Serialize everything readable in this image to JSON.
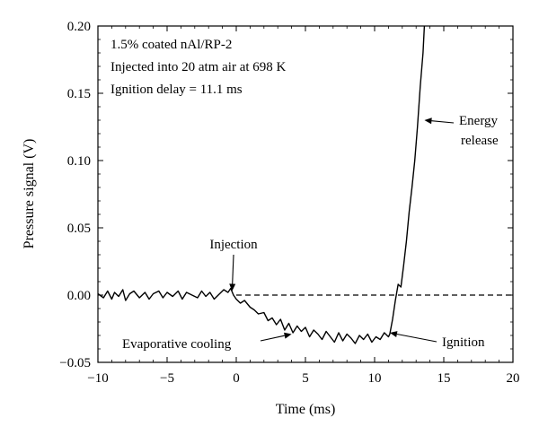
{
  "chart_data": {
    "type": "line",
    "xlabel": "Time (ms)",
    "ylabel": "Pressure signal (V)",
    "xlim": [
      -10,
      20
    ],
    "ylim": [
      -0.05,
      0.2
    ],
    "x_ticks": [
      -10,
      -5,
      0,
      5,
      10,
      15,
      20
    ],
    "y_ticks": [
      -0.05,
      0.0,
      0.05,
      0.1,
      0.15,
      0.2
    ],
    "x_tick_labels": [
      "−10",
      "−5",
      "0",
      "5",
      "10",
      "15",
      "20"
    ],
    "y_tick_labels": [
      "−0.05",
      "0.00",
      "0.05",
      "0.10",
      "0.15",
      "0.20"
    ],
    "info_text": [
      "1.5% coated nAl/RP-2",
      "Injected into 20 atm air at 698 K",
      "Ignition delay = 11.1 ms"
    ],
    "reference_line": {
      "y": 0.0,
      "style": "dashed",
      "x_start": 0
    },
    "annotations": [
      {
        "text": "Injection",
        "x": -0.3,
        "y": 0.003
      },
      {
        "text": "Evaporative cooling",
        "x": 4.0,
        "y": -0.029
      },
      {
        "text": "Ignition",
        "x": 11.1,
        "y": -0.028
      },
      {
        "text": "Energy release",
        "x": 13.6,
        "y": 0.13
      }
    ],
    "series": [
      {
        "color": "#000000",
        "x": [
          -10.0,
          -9.6,
          -9.3,
          -9.0,
          -8.8,
          -8.5,
          -8.2,
          -8.0,
          -7.7,
          -7.4,
          -7.0,
          -6.6,
          -6.3,
          -6.0,
          -5.6,
          -5.3,
          -5.0,
          -4.6,
          -4.2,
          -3.9,
          -3.6,
          -3.2,
          -2.8,
          -2.5,
          -2.2,
          -1.9,
          -1.6,
          -1.2,
          -0.9,
          -0.6,
          -0.4,
          -0.2,
          0.0,
          0.3,
          0.6,
          1.0,
          1.3,
          1.6,
          2.0,
          2.3,
          2.6,
          2.9,
          3.2,
          3.5,
          3.8,
          4.1,
          4.4,
          4.7,
          5.0,
          5.3,
          5.6,
          5.9,
          6.2,
          6.5,
          6.8,
          7.1,
          7.4,
          7.7,
          8.0,
          8.3,
          8.6,
          8.9,
          9.2,
          9.5,
          9.8,
          10.1,
          10.4,
          10.7,
          11.0,
          11.1,
          11.3,
          11.5,
          11.7,
          11.9,
          12.1,
          12.3,
          12.5,
          12.7,
          12.9,
          13.1,
          13.3,
          13.5,
          13.6
        ],
        "y": [
          0.001,
          -0.002,
          0.003,
          -0.003,
          0.002,
          -0.001,
          0.004,
          -0.004,
          0.001,
          0.003,
          -0.002,
          0.002,
          -0.003,
          0.001,
          0.003,
          -0.002,
          0.002,
          -0.001,
          0.003,
          -0.003,
          0.002,
          0.0,
          -0.002,
          0.003,
          -0.001,
          0.002,
          -0.003,
          0.001,
          0.004,
          0.002,
          0.005,
          0.0,
          -0.003,
          -0.006,
          -0.004,
          -0.009,
          -0.011,
          -0.014,
          -0.013,
          -0.019,
          -0.017,
          -0.022,
          -0.018,
          -0.026,
          -0.021,
          -0.028,
          -0.023,
          -0.027,
          -0.024,
          -0.031,
          -0.026,
          -0.029,
          -0.033,
          -0.027,
          -0.031,
          -0.035,
          -0.028,
          -0.034,
          -0.029,
          -0.032,
          -0.036,
          -0.03,
          -0.033,
          -0.029,
          -0.035,
          -0.031,
          -0.033,
          -0.028,
          -0.031,
          -0.029,
          -0.018,
          -0.004,
          0.008,
          0.006,
          0.022,
          0.04,
          0.062,
          0.08,
          0.1,
          0.125,
          0.155,
          0.18,
          0.2
        ]
      }
    ]
  }
}
